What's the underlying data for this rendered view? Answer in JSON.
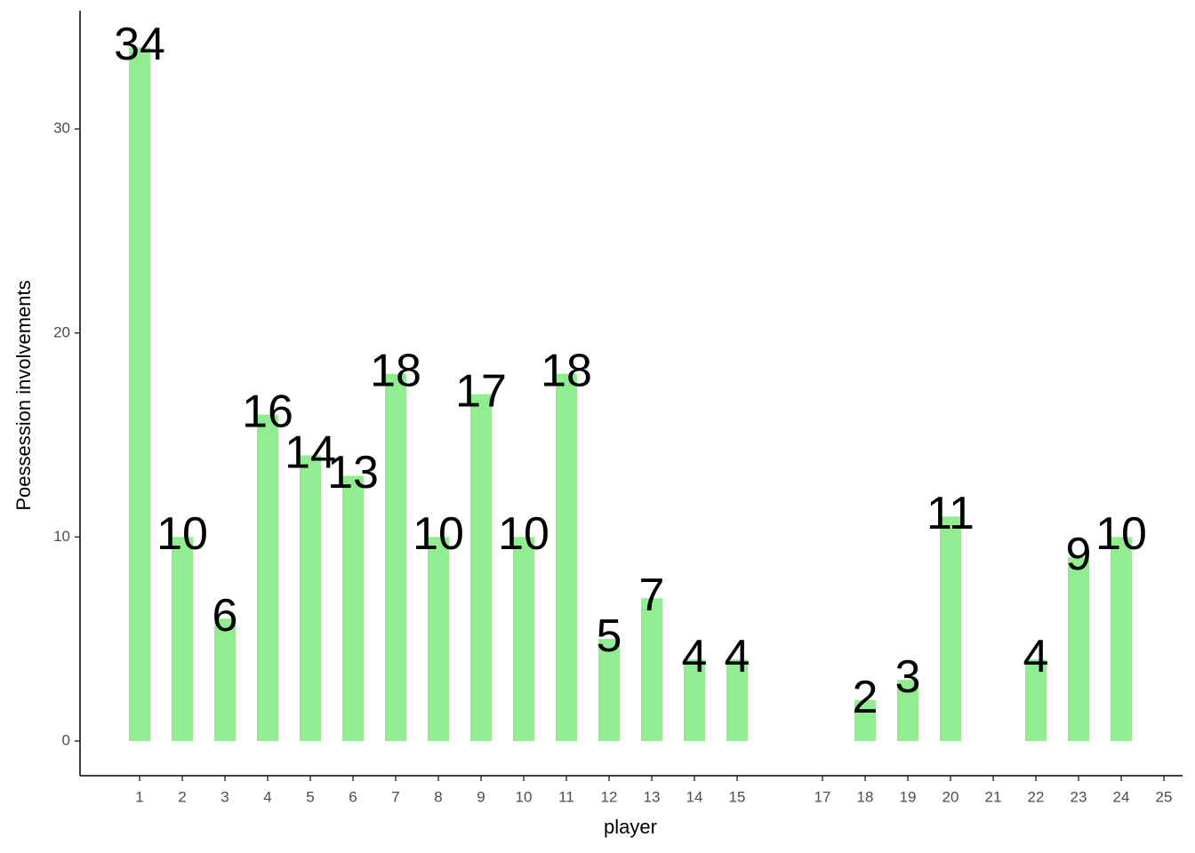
{
  "chart_data": {
    "type": "bar",
    "x_label": "player",
    "y_label": "Poessession involvements",
    "categories": [
      "1",
      "2",
      "3",
      "4",
      "5",
      "6",
      "7",
      "8",
      "9",
      "10",
      "11",
      "12",
      "13",
      "14",
      "15",
      null,
      "17",
      "18",
      "19",
      "20",
      "21",
      "22",
      "23",
      "24",
      "25"
    ],
    "values": [
      34,
      10,
      6,
      16,
      14,
      13,
      18,
      10,
      17,
      10,
      18,
      5,
      7,
      4,
      4,
      null,
      null,
      2,
      3,
      11,
      null,
      4,
      9,
      10,
      null
    ],
    "color": "#90ee90",
    "ylim": [
      -1.7,
      35.8
    ],
    "yticks": [
      0,
      10,
      20,
      30
    ],
    "grid": false
  }
}
